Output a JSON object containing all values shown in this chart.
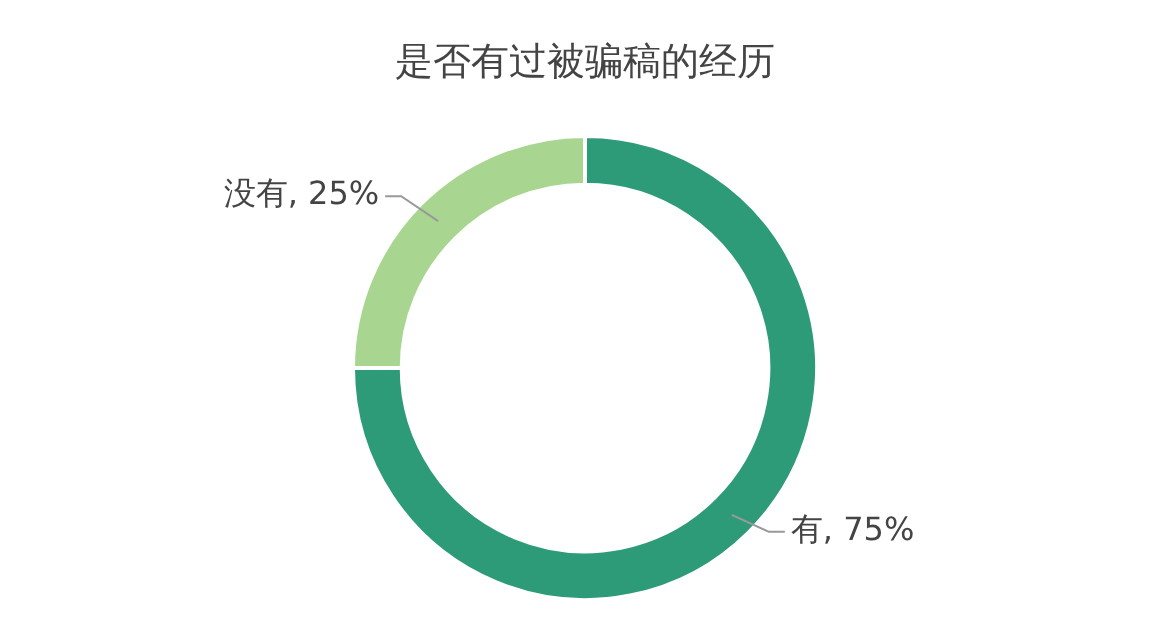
{
  "chart_data": {
    "type": "donut",
    "title": "是否有过被骗稿的经历",
    "categories": [
      "有",
      "没有"
    ],
    "values": [
      75,
      25
    ],
    "colors": [
      "#2e9b78",
      "#a8d58f"
    ],
    "value_labels": [
      "75%",
      "25%"
    ],
    "legend": false
  }
}
